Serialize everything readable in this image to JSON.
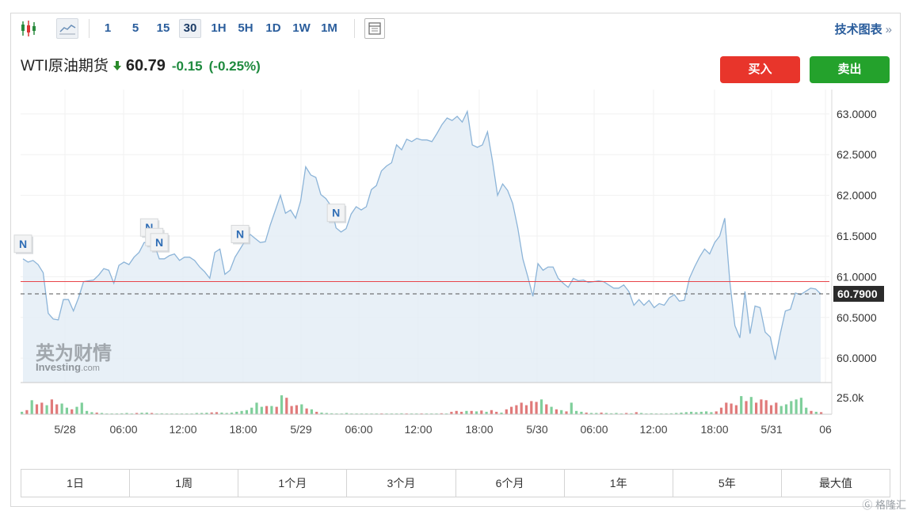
{
  "toolbar": {
    "timeframes": [
      "1",
      "5",
      "15",
      "30",
      "1H",
      "5H",
      "1D",
      "1W",
      "1M"
    ],
    "active_timeframe": "30",
    "tech_chart_label": "技术图表",
    "tech_chart_arrow": "»"
  },
  "quote": {
    "name": "WTI原油期货",
    "price": "60.79",
    "change": "-0.15",
    "change_pct": "(-0.25%)"
  },
  "actions": {
    "buy": "买入",
    "sell": "卖出"
  },
  "ranges": [
    "1日",
    "1周",
    "1个月",
    "3个月",
    "6个月",
    "1年",
    "5年",
    "最大值"
  ],
  "watermark": "格隆汇",
  "logo": {
    "cn": "英为财情",
    "en": "Investing",
    "suffix": ".com"
  },
  "colors": {
    "line": "#8cb4d8",
    "area": "#e4edf6",
    "ref_line": "#e8454a",
    "up_volume": "#7fcf9b",
    "down_volume": "#e07a7a",
    "buy": "#e8352b",
    "sell": "#24a22c"
  },
  "chart_data": [
    {
      "type": "area",
      "x_tick_labels": [
        "5/28",
        "06:00",
        "12:00",
        "18:00",
        "5/29",
        "06:00",
        "12:00",
        "18:00",
        "5/30",
        "06:00",
        "12:00",
        "18:00",
        "5/31",
        "06"
      ],
      "y_tick_labels": [
        "63.0000",
        "62.5000",
        "62.0000",
        "61.5000",
        "61.0000",
        "60.5000",
        "60.0000"
      ],
      "ylim": [
        59.7,
        63.3
      ],
      "reference_line": 60.94,
      "current_price_label": "60.7900",
      "current_price": 60.79,
      "news_markers": [
        {
          "label": "N",
          "bar": 0
        },
        {
          "label": "N",
          "bar": 25
        },
        {
          "label": "N",
          "bar": 26
        },
        {
          "label": "N",
          "bar": 27
        },
        {
          "label": "N",
          "bar": 43
        },
        {
          "label": "N",
          "bar": 62
        }
      ],
      "values": [
        61.22,
        61.18,
        61.2,
        61.15,
        61.05,
        60.55,
        60.48,
        60.47,
        60.72,
        60.72,
        60.58,
        60.74,
        60.94,
        60.95,
        60.96,
        61.02,
        61.1,
        61.08,
        60.92,
        61.14,
        61.18,
        61.15,
        61.24,
        61.3,
        61.42,
        61.42,
        61.4,
        61.22,
        61.22,
        61.26,
        61.28,
        61.2,
        61.24,
        61.24,
        61.2,
        61.12,
        61.06,
        60.98,
        61.3,
        61.34,
        61.03,
        61.08,
        61.24,
        61.34,
        61.44,
        61.52,
        61.47,
        61.42,
        61.43,
        61.64,
        61.82,
        62.0,
        61.78,
        61.82,
        61.72,
        61.93,
        62.35,
        62.25,
        62.22,
        62.01,
        61.96,
        61.87,
        61.6,
        61.55,
        61.59,
        61.77,
        61.86,
        61.82,
        61.86,
        62.07,
        62.12,
        62.3,
        62.36,
        62.4,
        62.62,
        62.56,
        62.69,
        62.66,
        62.7,
        62.68,
        62.68,
        62.66,
        62.76,
        62.87,
        62.95,
        62.92,
        62.97,
        62.9,
        63.03,
        62.62,
        62.59,
        62.62,
        62.78,
        62.42,
        62.0,
        62.14,
        62.06,
        61.9,
        61.6,
        61.22,
        61.0,
        60.76,
        61.16,
        61.08,
        61.12,
        61.12,
        60.98,
        60.92,
        60.87,
        60.98,
        60.95,
        60.96,
        60.93,
        60.94,
        60.95,
        60.94,
        60.9,
        60.86,
        60.86,
        60.9,
        60.82,
        60.65,
        60.72,
        60.65,
        60.71,
        60.62,
        60.67,
        60.65,
        60.74,
        60.78,
        60.7,
        60.71,
        60.98,
        61.12,
        61.24,
        61.34,
        61.28,
        61.42,
        61.5,
        61.72,
        60.94,
        60.4,
        60.25,
        60.82,
        60.3,
        60.64,
        60.62,
        60.32,
        60.26,
        59.98,
        60.3,
        60.58,
        60.6,
        60.8,
        60.78,
        60.82,
        60.86,
        60.85,
        60.79
      ],
      "volume": {
        "label": "25.0k",
        "max": 25000,
        "bars": [
          {
            "v": 3000,
            "up": true
          },
          {
            "v": 5000,
            "up": false
          },
          {
            "v": 17000,
            "up": true
          },
          {
            "v": 12000,
            "up": false
          },
          {
            "v": 14000,
            "up": false
          },
          {
            "v": 11000,
            "up": true
          },
          {
            "v": 18000,
            "up": false
          },
          {
            "v": 12000,
            "up": false
          },
          {
            "v": 13000,
            "up": true
          },
          {
            "v": 8000,
            "up": true
          },
          {
            "v": 6000,
            "up": false
          },
          {
            "v": 9000,
            "up": true
          },
          {
            "v": 14000,
            "up": true
          },
          {
            "v": 4000,
            "up": true
          },
          {
            "v": 2500,
            "up": true
          },
          {
            "v": 2000,
            "up": false
          },
          {
            "v": 1500,
            "up": true
          },
          {
            "v": 1000,
            "up": true
          },
          {
            "v": 800,
            "up": true
          },
          {
            "v": 800,
            "up": true
          },
          {
            "v": 1200,
            "up": true
          },
          {
            "v": 1500,
            "up": true
          },
          {
            "v": 1000,
            "up": true
          },
          {
            "v": 1500,
            "up": false
          },
          {
            "v": 1800,
            "up": true
          },
          {
            "v": 2000,
            "up": true
          },
          {
            "v": 1500,
            "up": false
          },
          {
            "v": 1000,
            "up": true
          },
          {
            "v": 1200,
            "up": true
          },
          {
            "v": 900,
            "up": true
          },
          {
            "v": 1000,
            "up": true
          },
          {
            "v": 800,
            "up": true
          },
          {
            "v": 700,
            "up": true
          },
          {
            "v": 1000,
            "up": true
          },
          {
            "v": 800,
            "up": true
          },
          {
            "v": 1500,
            "up": true
          },
          {
            "v": 1500,
            "up": true
          },
          {
            "v": 1800,
            "up": true
          },
          {
            "v": 2200,
            "up": false
          },
          {
            "v": 2500,
            "up": false
          },
          {
            "v": 2000,
            "up": true
          },
          {
            "v": 1500,
            "up": true
          },
          {
            "v": 2000,
            "up": true
          },
          {
            "v": 3000,
            "up": true
          },
          {
            "v": 4000,
            "up": true
          },
          {
            "v": 5000,
            "up": true
          },
          {
            "v": 8000,
            "up": true
          },
          {
            "v": 14000,
            "up": true
          },
          {
            "v": 9000,
            "up": true
          },
          {
            "v": 10000,
            "up": false
          },
          {
            "v": 10000,
            "up": true
          },
          {
            "v": 9000,
            "up": false
          },
          {
            "v": 23000,
            "up": true
          },
          {
            "v": 20000,
            "up": false
          },
          {
            "v": 10000,
            "up": false
          },
          {
            "v": 11000,
            "up": false
          },
          {
            "v": 12000,
            "up": true
          },
          {
            "v": 7000,
            "up": false
          },
          {
            "v": 6000,
            "up": true
          },
          {
            "v": 3000,
            "up": false
          },
          {
            "v": 2000,
            "up": true
          },
          {
            "v": 1500,
            "up": true
          },
          {
            "v": 1200,
            "up": true
          },
          {
            "v": 1000,
            "up": true
          },
          {
            "v": 1000,
            "up": true
          },
          {
            "v": 1500,
            "up": true
          },
          {
            "v": 1000,
            "up": true
          },
          {
            "v": 800,
            "up": true
          },
          {
            "v": 800,
            "up": true
          },
          {
            "v": 1000,
            "up": true
          },
          {
            "v": 800,
            "up": true
          },
          {
            "v": 1000,
            "up": true
          },
          {
            "v": 800,
            "up": false
          },
          {
            "v": 1000,
            "up": true
          },
          {
            "v": 800,
            "up": true
          },
          {
            "v": 1000,
            "up": true
          },
          {
            "v": 1200,
            "up": true
          },
          {
            "v": 800,
            "up": false
          },
          {
            "v": 1000,
            "up": true
          },
          {
            "v": 800,
            "up": true
          },
          {
            "v": 800,
            "up": false
          },
          {
            "v": 1000,
            "up": true
          },
          {
            "v": 800,
            "up": true
          },
          {
            "v": 1000,
            "up": true
          },
          {
            "v": 1200,
            "up": false
          },
          {
            "v": 1000,
            "up": true
          },
          {
            "v": 3000,
            "up": false
          },
          {
            "v": 4000,
            "up": false
          },
          {
            "v": 3000,
            "up": false
          },
          {
            "v": 4000,
            "up": true
          },
          {
            "v": 4000,
            "up": false
          },
          {
            "v": 3500,
            "up": true
          },
          {
            "v": 4500,
            "up": false
          },
          {
            "v": 3000,
            "up": true
          },
          {
            "v": 5000,
            "up": false
          },
          {
            "v": 3000,
            "up": false
          },
          {
            "v": 2000,
            "up": true
          },
          {
            "v": 6000,
            "up": false
          },
          {
            "v": 9000,
            "up": false
          },
          {
            "v": 11000,
            "up": false
          },
          {
            "v": 14000,
            "up": false
          },
          {
            "v": 11000,
            "up": false
          },
          {
            "v": 16000,
            "up": false
          },
          {
            "v": 15000,
            "up": false
          },
          {
            "v": 18000,
            "up": true
          },
          {
            "v": 12000,
            "up": false
          },
          {
            "v": 9000,
            "up": true
          },
          {
            "v": 6000,
            "up": false
          },
          {
            "v": 5000,
            "up": true
          },
          {
            "v": 3500,
            "up": false
          },
          {
            "v": 14000,
            "up": true
          },
          {
            "v": 4000,
            "up": true
          },
          {
            "v": 3000,
            "up": true
          },
          {
            "v": 2000,
            "up": false
          },
          {
            "v": 1500,
            "up": true
          },
          {
            "v": 1500,
            "up": true
          },
          {
            "v": 2000,
            "up": false
          },
          {
            "v": 1500,
            "up": true
          },
          {
            "v": 1200,
            "up": true
          },
          {
            "v": 1500,
            "up": true
          },
          {
            "v": 1000,
            "up": true
          },
          {
            "v": 1500,
            "up": false
          },
          {
            "v": 1200,
            "up": true
          },
          {
            "v": 2500,
            "up": false
          },
          {
            "v": 1500,
            "up": true
          },
          {
            "v": 1000,
            "up": true
          },
          {
            "v": 1200,
            "up": true
          },
          {
            "v": 1000,
            "up": true
          },
          {
            "v": 800,
            "up": true
          },
          {
            "v": 1000,
            "up": true
          },
          {
            "v": 1200,
            "up": true
          },
          {
            "v": 1500,
            "up": true
          },
          {
            "v": 2000,
            "up": true
          },
          {
            "v": 2500,
            "up": true
          },
          {
            "v": 3000,
            "up": true
          },
          {
            "v": 2500,
            "up": true
          },
          {
            "v": 3000,
            "up": true
          },
          {
            "v": 3500,
            "up": true
          },
          {
            "v": 2500,
            "up": true
          },
          {
            "v": 3500,
            "up": false
          },
          {
            "v": 8000,
            "up": false
          },
          {
            "v": 14000,
            "up": false
          },
          {
            "v": 13000,
            "up": false
          },
          {
            "v": 11000,
            "up": false
          },
          {
            "v": 22000,
            "up": true
          },
          {
            "v": 16000,
            "up": false
          },
          {
            "v": 21000,
            "up": true
          },
          {
            "v": 14000,
            "up": false
          },
          {
            "v": 18000,
            "up": false
          },
          {
            "v": 17000,
            "up": false
          },
          {
            "v": 11000,
            "up": false
          },
          {
            "v": 14000,
            "up": false
          },
          {
            "v": 10000,
            "up": true
          },
          {
            "v": 12000,
            "up": true
          },
          {
            "v": 16000,
            "up": true
          },
          {
            "v": 18000,
            "up": true
          },
          {
            "v": 20000,
            "up": true
          },
          {
            "v": 8000,
            "up": true
          },
          {
            "v": 4000,
            "up": false
          },
          {
            "v": 3000,
            "up": true
          },
          {
            "v": 2500,
            "up": false
          }
        ]
      }
    }
  ]
}
